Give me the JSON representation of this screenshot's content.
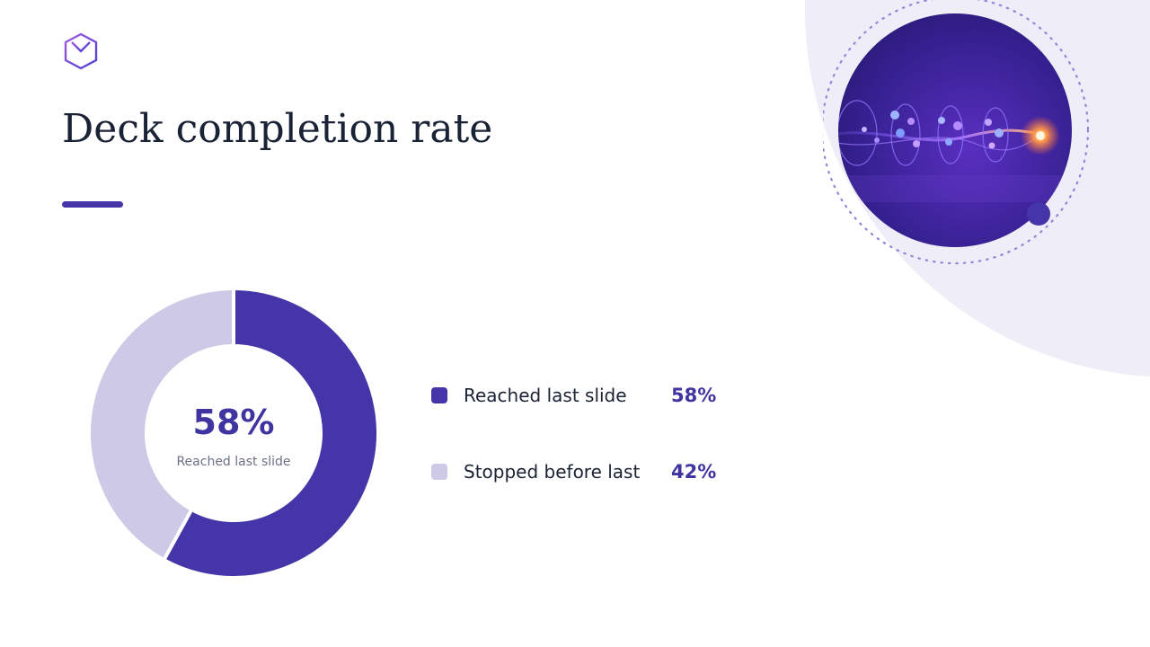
{
  "slide": {
    "title": "Deck completion rate",
    "logo_icon": "cube-y-logo-icon",
    "accent_color": "#4435a8",
    "image_icon": "particle-stream-image"
  },
  "chart_data": {
    "type": "pie",
    "donut": true,
    "title": "",
    "categories": [
      "Reached last slide",
      "Stopped before last"
    ],
    "values": [
      58,
      42
    ],
    "value_labels": [
      "58%",
      "42%"
    ],
    "colors": [
      "#4435a8",
      "#cdc9e6"
    ],
    "center_value": "58%",
    "center_label": "Reached last slide",
    "legend_position": "right"
  }
}
